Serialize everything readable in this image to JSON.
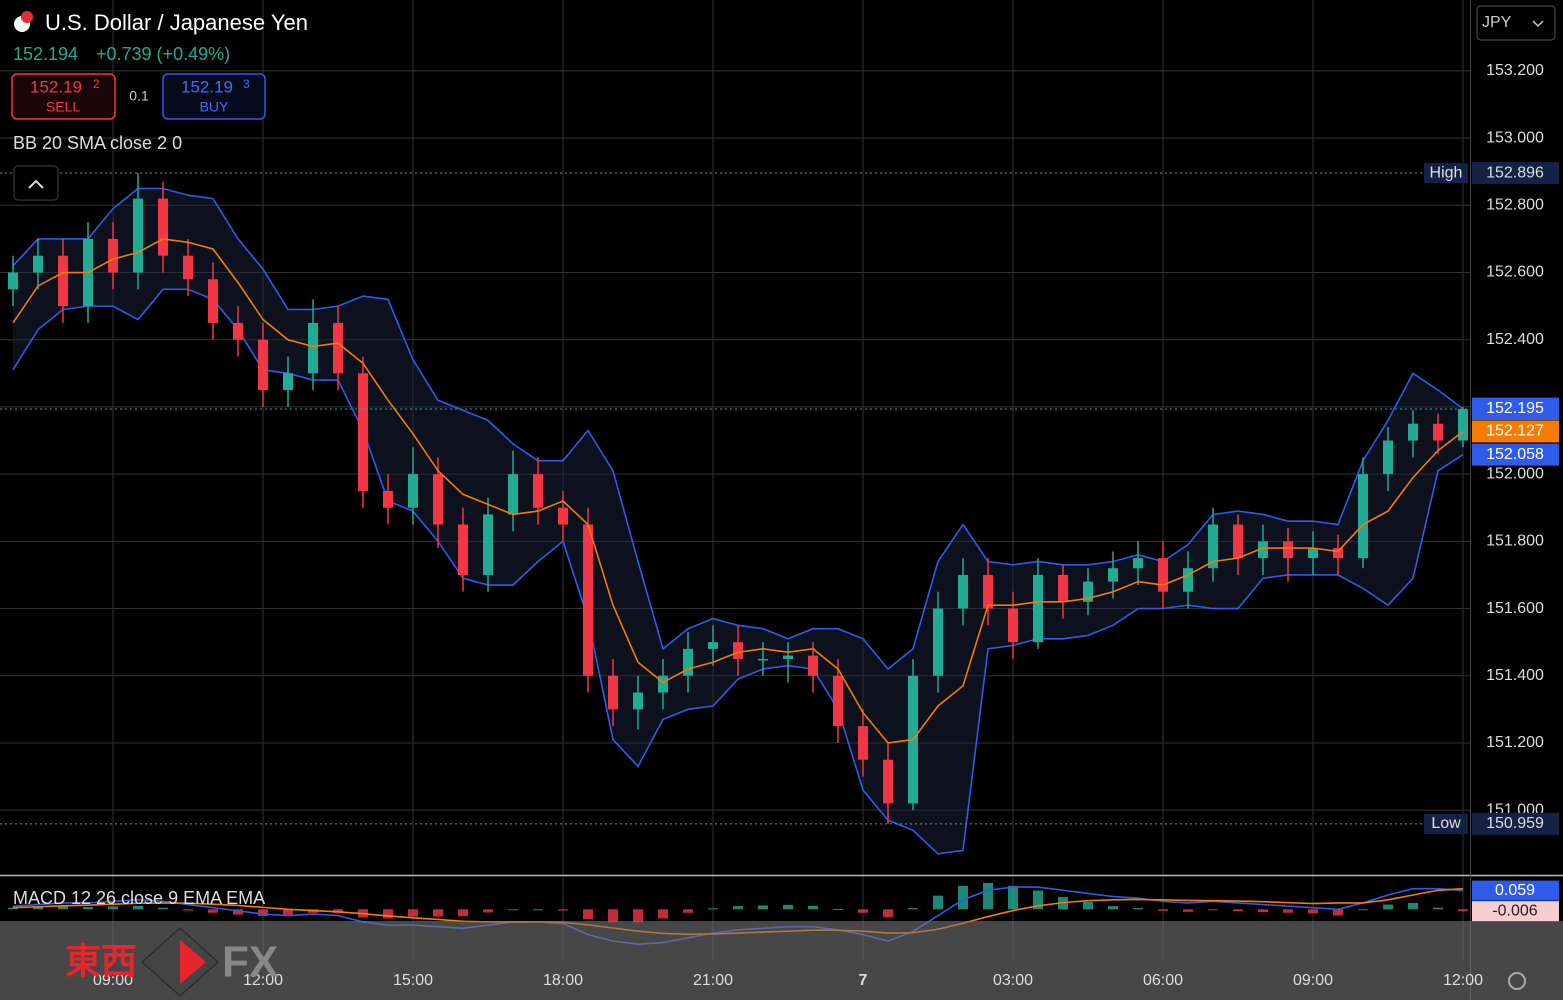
{
  "chart_data": {
    "type": "candlestick",
    "title": "U.S. Dollar / Japanese Yen",
    "change_label": "+0.739 (+0.49%)",
    "x": [
      7,
      7.5,
      8,
      8.5,
      9,
      9.5,
      10,
      10.5,
      11,
      11.5,
      12,
      12.5,
      13,
      13.5,
      14,
      14.5,
      15,
      15.5,
      16,
      16.5,
      17,
      17.5,
      18,
      18.5,
      19,
      19.5,
      20,
      20.5,
      21,
      21.5,
      22,
      22.5,
      23,
      23.5,
      24,
      24.5,
      25,
      25.5,
      26,
      26.5,
      27,
      27.5,
      28,
      28.5,
      29,
      29.5,
      30,
      30.5,
      31,
      31.5,
      32,
      32.5,
      33,
      33.5,
      34,
      34.5,
      35,
      35.5,
      36
    ],
    "xlim": [
      6.74,
      36.14
    ],
    "xticks": [
      {
        "value": 9,
        "label": "09:00"
      },
      {
        "value": 12,
        "label": "12:00"
      },
      {
        "value": 15,
        "label": "15:00"
      },
      {
        "value": 18,
        "label": "18:00"
      },
      {
        "value": 21,
        "label": "21:00"
      },
      {
        "value": 24,
        "label": "7"
      },
      {
        "value": 27,
        "label": "03:00"
      },
      {
        "value": 30,
        "label": "06:00"
      },
      {
        "value": 33,
        "label": "09:00"
      },
      {
        "value": 36,
        "label": "12:00"
      }
    ],
    "ylim": [
      150.807,
      153.411
    ],
    "yticks": [
      {
        "value": 151.0,
        "label": "151.000"
      },
      {
        "value": 151.2,
        "label": "151.200"
      },
      {
        "value": 151.4,
        "label": "151.400"
      },
      {
        "value": 151.6,
        "label": "151.600"
      },
      {
        "value": 151.8,
        "label": "151.800"
      },
      {
        "value": 152.0,
        "label": "152.000"
      },
      {
        "value": 152.2,
        "label": "152.200"
      },
      {
        "value": 152.4,
        "label": "152.400"
      },
      {
        "value": 152.6,
        "label": "152.600"
      },
      {
        "value": 152.8,
        "label": "152.800"
      },
      {
        "value": 153.0,
        "label": "153.000"
      },
      {
        "value": 153.2,
        "label": "153.200"
      }
    ],
    "grid": true,
    "colors": {
      "up": "#22ab94",
      "down": "#f23645",
      "bb": "#2f5bea",
      "bb_middle": "#f57c00",
      "macd": "#2f5bea",
      "signal": "#f57c00"
    },
    "open": [
      152.55,
      152.6,
      152.65,
      152.5,
      152.7,
      152.6,
      152.82,
      152.65,
      152.58,
      152.45,
      152.4,
      152.25,
      152.3,
      152.45,
      152.3,
      151.95,
      151.9,
      152.0,
      151.85,
      151.7,
      151.88,
      152.0,
      151.9,
      151.85,
      151.4,
      151.3,
      151.35,
      151.4,
      151.48,
      151.5,
      151.45,
      151.45,
      151.46,
      151.4,
      151.25,
      151.15,
      151.02,
      151.4,
      151.6,
      151.7,
      151.6,
      151.5,
      151.7,
      151.62,
      151.68,
      151.72,
      151.75,
      151.65,
      151.72,
      151.85,
      151.75,
      151.8,
      151.75,
      151.78,
      151.75,
      152.0,
      152.1,
      152.15,
      152.1
    ],
    "high": [
      152.65,
      152.7,
      152.7,
      152.75,
      152.75,
      152.896,
      152.87,
      152.7,
      152.63,
      152.5,
      152.45,
      152.35,
      152.52,
      152.5,
      152.35,
      152.0,
      152.08,
      152.05,
      151.9,
      151.93,
      152.07,
      152.05,
      151.95,
      151.9,
      151.45,
      151.4,
      151.45,
      151.53,
      151.55,
      151.55,
      151.5,
      151.5,
      151.5,
      151.45,
      151.3,
      151.2,
      151.45,
      151.65,
      151.75,
      151.75,
      151.65,
      151.75,
      151.73,
      151.72,
      151.77,
      151.8,
      151.8,
      151.77,
      151.9,
      151.88,
      151.85,
      151.84,
      151.83,
      151.82,
      152.05,
      152.14,
      152.19,
      152.18,
      152.2
    ],
    "low": [
      152.5,
      152.55,
      152.45,
      152.45,
      152.55,
      152.55,
      152.6,
      152.53,
      152.4,
      152.35,
      152.2,
      152.2,
      152.25,
      152.25,
      151.9,
      151.85,
      151.85,
      151.78,
      151.65,
      151.65,
      151.83,
      151.85,
      151.8,
      151.35,
      151.25,
      151.24,
      151.3,
      151.35,
      151.43,
      151.4,
      151.4,
      151.38,
      151.35,
      151.2,
      151.1,
      150.959,
      151.0,
      151.35,
      151.55,
      151.55,
      151.45,
      151.48,
      151.57,
      151.58,
      151.63,
      151.67,
      151.6,
      151.6,
      151.68,
      151.7,
      151.7,
      151.68,
      151.7,
      151.7,
      151.72,
      151.95,
      152.05,
      152.06,
      152.08
    ],
    "close": [
      152.6,
      152.65,
      152.5,
      152.7,
      152.6,
      152.82,
      152.65,
      152.58,
      152.45,
      152.4,
      152.25,
      152.3,
      152.45,
      152.3,
      151.95,
      151.9,
      152.0,
      151.85,
      151.7,
      151.88,
      152.0,
      151.9,
      151.85,
      151.4,
      151.3,
      151.35,
      151.4,
      151.48,
      151.5,
      151.45,
      151.45,
      151.46,
      151.4,
      151.25,
      151.15,
      151.02,
      151.4,
      151.6,
      151.7,
      151.6,
      151.5,
      151.7,
      151.62,
      151.68,
      151.72,
      151.75,
      151.65,
      151.72,
      151.85,
      151.75,
      151.8,
      151.75,
      151.78,
      151.75,
      152.0,
      152.1,
      152.15,
      152.1,
      152.194
    ],
    "bb_label": "BB 20 SMA close 2 0",
    "bb_upper": [
      152.62,
      152.7,
      152.7,
      152.7,
      152.79,
      152.85,
      152.85,
      152.83,
      152.82,
      152.7,
      152.61,
      152.49,
      152.49,
      152.5,
      152.53,
      152.52,
      152.34,
      152.22,
      152.19,
      152.16,
      152.09,
      152.04,
      152.04,
      152.13,
      152.01,
      151.74,
      151.48,
      151.54,
      151.57,
      151.55,
      151.54,
      151.51,
      151.54,
      151.54,
      151.51,
      151.42,
      151.48,
      151.74,
      151.85,
      151.74,
      151.73,
      151.74,
      151.73,
      151.73,
      151.74,
      151.76,
      151.74,
      151.79,
      151.88,
      151.89,
      151.88,
      151.86,
      151.86,
      151.85,
      152.04,
      152.16,
      152.3,
      152.25,
      152.195
    ],
    "bb_middle": [
      152.45,
      152.56,
      152.6,
      152.6,
      152.64,
      152.66,
      152.7,
      152.69,
      152.67,
      152.57,
      152.46,
      152.4,
      152.38,
      152.39,
      152.33,
      152.22,
      152.12,
      152.01,
      151.94,
      151.91,
      151.88,
      151.89,
      151.92,
      151.85,
      151.61,
      151.44,
      151.38,
      151.42,
      151.44,
      151.47,
      151.48,
      151.47,
      151.48,
      151.42,
      151.29,
      151.2,
      151.21,
      151.31,
      151.37,
      151.61,
      151.61,
      151.62,
      151.62,
      151.63,
      151.65,
      151.68,
      151.67,
      151.7,
      151.74,
      151.75,
      151.78,
      151.78,
      151.78,
      151.77,
      151.85,
      151.89,
      151.99,
      152.07,
      152.127
    ],
    "bb_lower": [
      152.31,
      152.43,
      152.49,
      152.5,
      152.5,
      152.46,
      152.55,
      152.55,
      152.52,
      152.43,
      152.31,
      152.3,
      152.28,
      152.28,
      152.13,
      151.92,
      151.89,
      151.8,
      151.69,
      151.67,
      151.67,
      151.74,
      151.8,
      151.57,
      151.21,
      151.13,
      151.27,
      151.3,
      151.31,
      151.39,
      151.42,
      151.43,
      151.42,
      151.3,
      151.06,
      150.97,
      150.94,
      150.87,
      150.88,
      151.48,
      151.49,
      151.51,
      151.51,
      151.52,
      151.55,
      151.6,
      151.6,
      151.61,
      151.6,
      151.6,
      151.69,
      151.7,
      151.7,
      151.7,
      151.66,
      151.61,
      151.69,
      152.01,
      152.058
    ],
    "high_label": "High",
    "low_label": "Low",
    "macd_label": "MACD 12 26 close 9 EMA EMA",
    "macd_ylim": [
      -0.16,
      0.105
    ],
    "macd": [
      0.01,
      0.015,
      0.02,
      0.02,
      0.025,
      0.03,
      0.025,
      0.015,
      0.005,
      -0.005,
      -0.015,
      -0.02,
      -0.015,
      -0.02,
      -0.04,
      -0.05,
      -0.05,
      -0.055,
      -0.06,
      -0.05,
      -0.04,
      -0.04,
      -0.045,
      -0.08,
      -0.1,
      -0.11,
      -0.105,
      -0.09,
      -0.075,
      -0.065,
      -0.06,
      -0.055,
      -0.055,
      -0.065,
      -0.08,
      -0.1,
      -0.07,
      -0.02,
      0.03,
      0.06,
      0.07,
      0.07,
      0.06,
      0.05,
      0.04,
      0.035,
      0.025,
      0.02,
      0.025,
      0.02,
      0.015,
      0.01,
      0.005,
      0.0,
      0.02,
      0.045,
      0.065,
      0.065,
      0.059
    ],
    "signal": [
      0.005,
      0.008,
      0.011,
      0.013,
      0.016,
      0.019,
      0.02,
      0.019,
      0.016,
      0.012,
      0.006,
      0.0,
      -0.004,
      -0.008,
      -0.014,
      -0.021,
      -0.027,
      -0.032,
      -0.038,
      -0.04,
      -0.04,
      -0.04,
      -0.041,
      -0.049,
      -0.059,
      -0.069,
      -0.076,
      -0.079,
      -0.078,
      -0.075,
      -0.072,
      -0.069,
      -0.066,
      -0.066,
      -0.069,
      -0.075,
      -0.074,
      -0.063,
      -0.044,
      -0.023,
      -0.004,
      0.011,
      0.021,
      0.027,
      0.03,
      0.031,
      0.03,
      0.028,
      0.027,
      0.026,
      0.024,
      0.021,
      0.018,
      0.02,
      0.02,
      0.03,
      0.045,
      0.06,
      0.065
    ],
    "histogram": [
      0.005,
      0.007,
      0.009,
      0.007,
      0.009,
      0.011,
      0.005,
      -0.004,
      -0.011,
      -0.017,
      -0.021,
      -0.02,
      -0.011,
      -0.012,
      -0.026,
      -0.029,
      -0.023,
      -0.023,
      -0.022,
      -0.01,
      0.0,
      0.0,
      -0.004,
      -0.031,
      -0.041,
      -0.041,
      -0.029,
      -0.011,
      0.003,
      0.01,
      0.012,
      0.014,
      0.011,
      0.001,
      -0.011,
      -0.025,
      0.004,
      0.043,
      0.074,
      0.083,
      0.074,
      0.059,
      0.039,
      0.023,
      0.01,
      0.004,
      -0.005,
      -0.008,
      -0.002,
      -0.006,
      -0.009,
      -0.011,
      -0.013,
      -0.02,
      0.0,
      0.015,
      0.02,
      0.005,
      -0.006
    ]
  },
  "trade": {
    "sell_price": "152.19",
    "sell_pip": "2",
    "sell_label": "SELL",
    "spread": "0.1",
    "buy_price": "152.19",
    "buy_pip": "3",
    "buy_label": "BUY"
  },
  "currency": "JPY",
  "watermark": {
    "left": "東西",
    "right": "FX"
  }
}
